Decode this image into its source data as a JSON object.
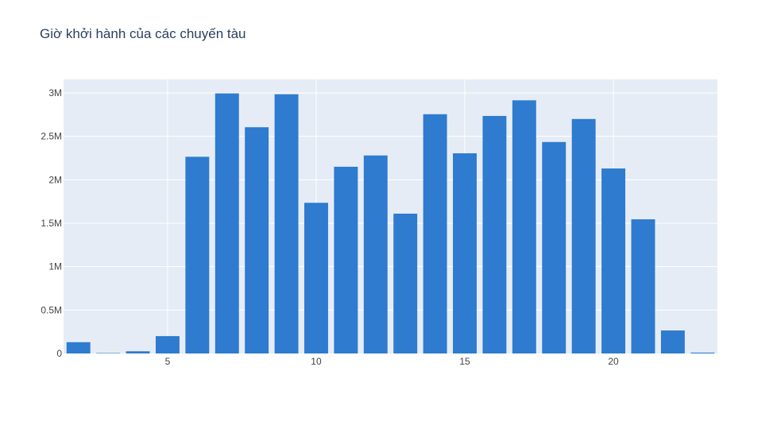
{
  "chart_data": {
    "type": "bar",
    "title": "Giờ khởi hành của các chuyến tàu",
    "xlabel": "",
    "ylabel": "",
    "x": [
      2,
      3,
      4,
      5,
      6,
      7,
      8,
      9,
      10,
      11,
      12,
      13,
      14,
      15,
      16,
      17,
      18,
      19,
      20,
      21,
      22,
      23
    ],
    "values": [
      130000,
      5000,
      25000,
      200000,
      2265000,
      2995000,
      2605000,
      2985000,
      1735000,
      2150000,
      2280000,
      1610000,
      2755000,
      2305000,
      2735000,
      2915000,
      2435000,
      2700000,
      2130000,
      1545000,
      265000,
      10000
    ],
    "xlim": [
      1.5,
      23.5
    ],
    "ylim": [
      0,
      3000000
    ],
    "x_ticks": [
      5,
      10,
      15,
      20
    ],
    "x_tick_labels": [
      "5",
      "10",
      "15",
      "20"
    ],
    "y_ticks": [
      0,
      500000,
      1000000,
      1500000,
      2000000,
      2500000,
      3000000
    ],
    "y_tick_labels": [
      "0",
      "0.5M",
      "1M",
      "1.5M",
      "2M",
      "2.5M",
      "3M"
    ],
    "grid": true,
    "legend": "none",
    "colors": {
      "bar": "#2e7bcf",
      "plot_background": "#e5ecf6",
      "grid": "#ffffff",
      "text": "#2a3f5f",
      "tick_text": "#444444"
    }
  }
}
